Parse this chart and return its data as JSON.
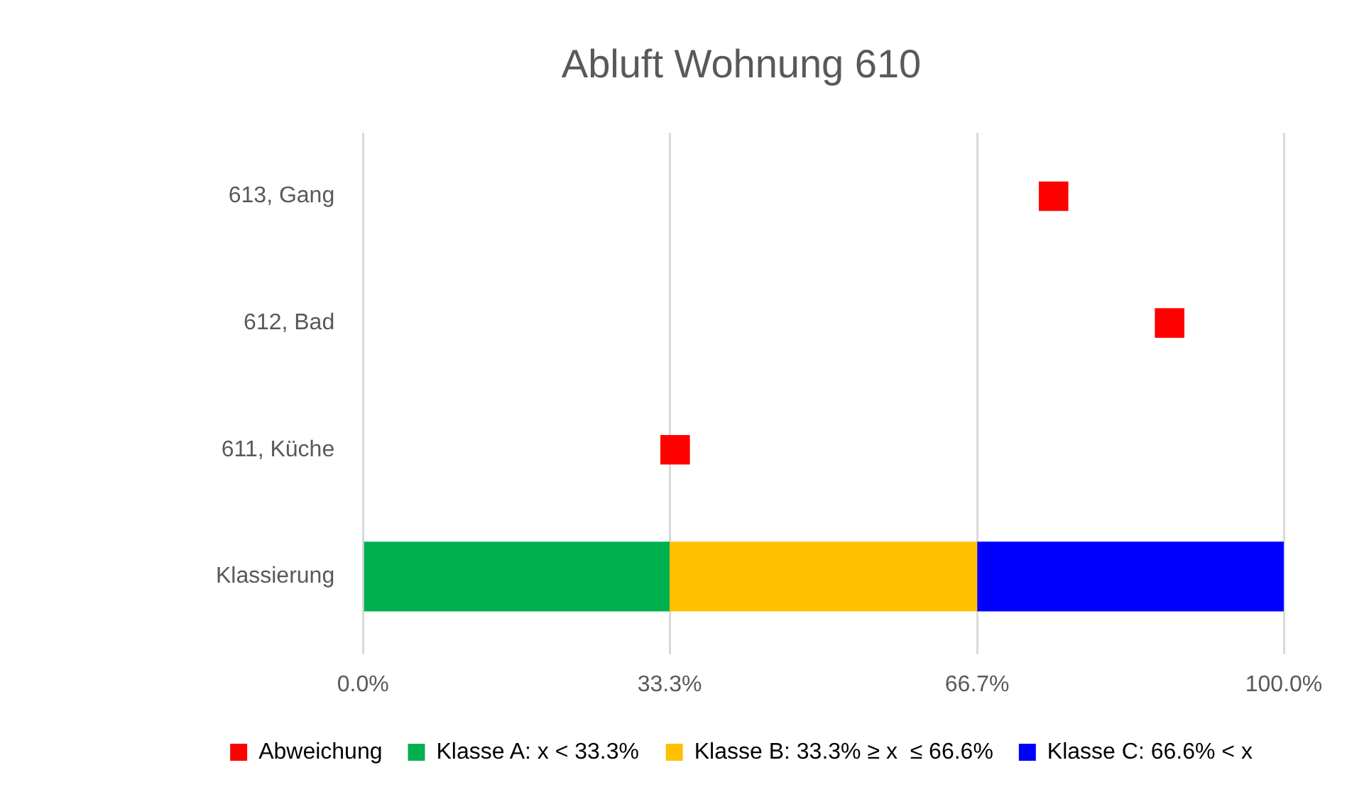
{
  "chart_data": {
    "type": "bar",
    "orientation": "horizontal",
    "stacked": true,
    "title": "Abluft Wohnung 610",
    "categories": [
      "613, Gang",
      "612, Bad",
      "611, Küche",
      "Klassierung"
    ],
    "series": [
      {
        "name": "Abweichung",
        "type": "scatter",
        "marker": "square",
        "color": "#ff0000",
        "values": [
          75.0,
          87.6,
          33.9,
          null
        ]
      },
      {
        "name": "Klasse A: x < 33.3%",
        "color": "#00b050",
        "values": [
          null,
          null,
          null,
          33.3
        ]
      },
      {
        "name": "Klasse B: 33.3% ≥ x  ≤ 66.6%",
        "color": "#ffc000",
        "values": [
          null,
          null,
          null,
          33.4
        ]
      },
      {
        "name": "Klasse C: 66.6% < x",
        "color": "#0000ff",
        "values": [
          null,
          null,
          null,
          33.3
        ]
      }
    ],
    "xlim": [
      0,
      100
    ],
    "xticks": [
      {
        "value": 0,
        "label": "0.0%"
      },
      {
        "value": 33.3,
        "label": "33.3%"
      },
      {
        "value": 66.7,
        "label": "66.7%"
      },
      {
        "value": 100,
        "label": "100.0%"
      }
    ],
    "grid": "x",
    "legend": "bottom"
  }
}
